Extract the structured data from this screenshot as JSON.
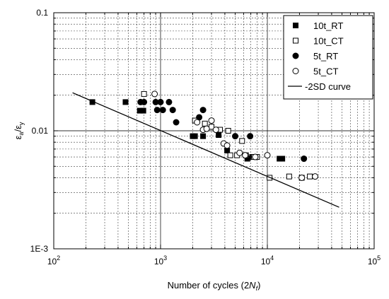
{
  "chart_data": {
    "type": "scatter",
    "x_scale": "log",
    "y_scale": "log",
    "xlim": [
      100,
      100000
    ],
    "ylim": [
      0.001,
      0.1
    ],
    "x_tick_values": [
      100,
      1000,
      10000,
      100000
    ],
    "x_tick_labels": [
      {
        "base": "10",
        "exp": "2"
      },
      {
        "base": "10",
        "exp": "3"
      },
      {
        "base": "10",
        "exp": "4"
      },
      {
        "base": "10",
        "exp": "5"
      }
    ],
    "y_tick_values": [
      0.001,
      0.01,
      0.1
    ],
    "y_tick_labels": [
      "1E-3",
      "0.01",
      "0.1"
    ],
    "xlabel": {
      "text": "Number of cycles (2",
      "italic": "N",
      "sub": "f",
      "close": ")"
    },
    "ylabel": {
      "main": "ε",
      "main_sub": "a",
      "sep": "/ε",
      "den_sub": "y"
    },
    "grid": "major and minor, dotted",
    "legend_position": "top-right",
    "series": [
      {
        "name": "10t_RT",
        "marker": "square",
        "filled": true,
        "color": "#000000",
        "points": [
          [
            230,
            0.0175
          ],
          [
            470,
            0.0175
          ],
          [
            640,
            0.0148
          ],
          [
            690,
            0.0148
          ],
          [
            2000,
            0.009
          ],
          [
            2100,
            0.009
          ],
          [
            2500,
            0.009
          ],
          [
            3500,
            0.0092
          ],
          [
            4200,
            0.0068
          ],
          [
            6500,
            0.0058
          ],
          [
            7200,
            0.006
          ],
          [
            13000,
            0.0058
          ],
          [
            13800,
            0.0058
          ]
        ]
      },
      {
        "name": "10t_CT",
        "marker": "square",
        "filled": false,
        "color": "#000000",
        "points": [
          [
            700,
            0.0205
          ],
          [
            2100,
            0.0122
          ],
          [
            2600,
            0.0115
          ],
          [
            3000,
            0.0108
          ],
          [
            3600,
            0.0102
          ],
          [
            4300,
            0.01
          ],
          [
            4500,
            0.0062
          ],
          [
            5200,
            0.0062
          ],
          [
            5800,
            0.0082
          ],
          [
            6300,
            0.0062
          ],
          [
            7500,
            0.006
          ],
          [
            8000,
            0.006
          ],
          [
            10500,
            0.004
          ],
          [
            16000,
            0.0041
          ],
          [
            21000,
            0.004
          ],
          [
            25000,
            0.0041
          ]
        ]
      },
      {
        "name": "5t_RT",
        "marker": "circle",
        "filled": true,
        "color": "#000000",
        "points": [
          [
            650,
            0.0175
          ],
          [
            700,
            0.0175
          ],
          [
            900,
            0.0175
          ],
          [
            930,
            0.015
          ],
          [
            1000,
            0.0175
          ],
          [
            1050,
            0.015
          ],
          [
            1200,
            0.0175
          ],
          [
            1300,
            0.015
          ],
          [
            1400,
            0.0118
          ],
          [
            2300,
            0.013
          ],
          [
            2500,
            0.015
          ],
          [
            5000,
            0.009
          ],
          [
            6900,
            0.009
          ],
          [
            22000,
            0.0058
          ]
        ]
      },
      {
        "name": "5t_CT",
        "marker": "circle",
        "filled": false,
        "color": "#000000",
        "points": [
          [
            880,
            0.0205
          ],
          [
            2200,
            0.0118
          ],
          [
            2500,
            0.0102
          ],
          [
            2700,
            0.0104
          ],
          [
            3000,
            0.0122
          ],
          [
            3300,
            0.0102
          ],
          [
            3900,
            0.0078
          ],
          [
            4200,
            0.0075
          ],
          [
            5500,
            0.0065
          ],
          [
            6200,
            0.0062
          ],
          [
            7700,
            0.006
          ],
          [
            10000,
            0.0062
          ],
          [
            21000,
            0.004
          ],
          [
            28000,
            0.0041
          ]
        ]
      },
      {
        "name": "-2SD curve",
        "marker": "line",
        "color": "#000000",
        "points": [
          [
            150,
            0.021
          ],
          [
            47000,
            0.00225
          ]
        ]
      }
    ]
  }
}
